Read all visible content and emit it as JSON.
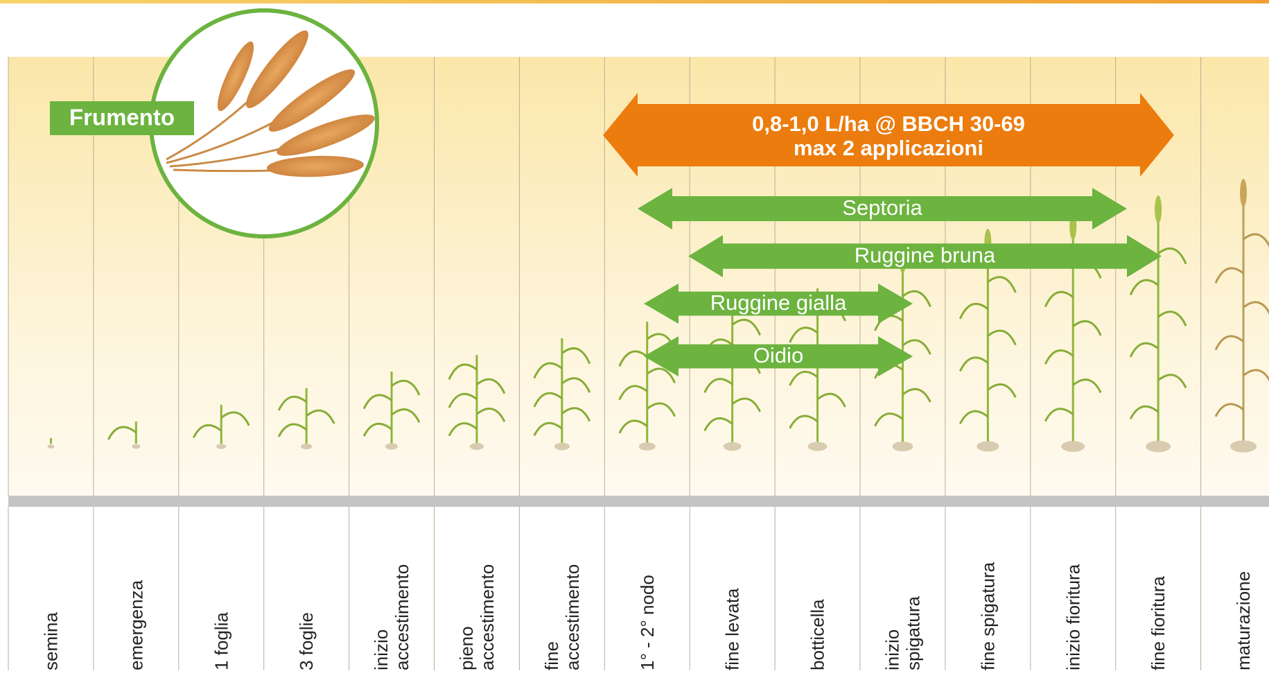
{
  "title": "Frumento",
  "dose_arrow": {
    "lines": [
      "0,8-1,0 L/ha @ BBCH 30-69",
      "max 2 applicazioni"
    ]
  },
  "disease_arrows": [
    {
      "label": "Septoria"
    },
    {
      "label": "Ruggine bruna"
    },
    {
      "label": "Ruggine gialla"
    },
    {
      "label": "Oidio"
    }
  ],
  "stages": [
    {
      "lines": [
        "semina"
      ]
    },
    {
      "lines": [
        "emergenza"
      ]
    },
    {
      "lines": [
        "1 foglia"
      ]
    },
    {
      "lines": [
        "3 foglie"
      ]
    },
    {
      "lines": [
        "inizio",
        "accestimento"
      ]
    },
    {
      "lines": [
        "pieno",
        "accestimento"
      ]
    },
    {
      "lines": [
        "fine",
        "accestimento"
      ]
    },
    {
      "lines": [
        "1° - 2° nodo"
      ]
    },
    {
      "lines": [
        "fine levata"
      ]
    },
    {
      "lines": [
        "botticella"
      ]
    },
    {
      "lines": [
        "inizio",
        "spigatura"
      ]
    },
    {
      "lines": [
        "fine spigatura"
      ]
    },
    {
      "lines": [
        "inizio fioritura"
      ]
    },
    {
      "lines": [
        "fine fioritura"
      ]
    },
    {
      "lines": [
        "maturazione"
      ]
    }
  ]
}
